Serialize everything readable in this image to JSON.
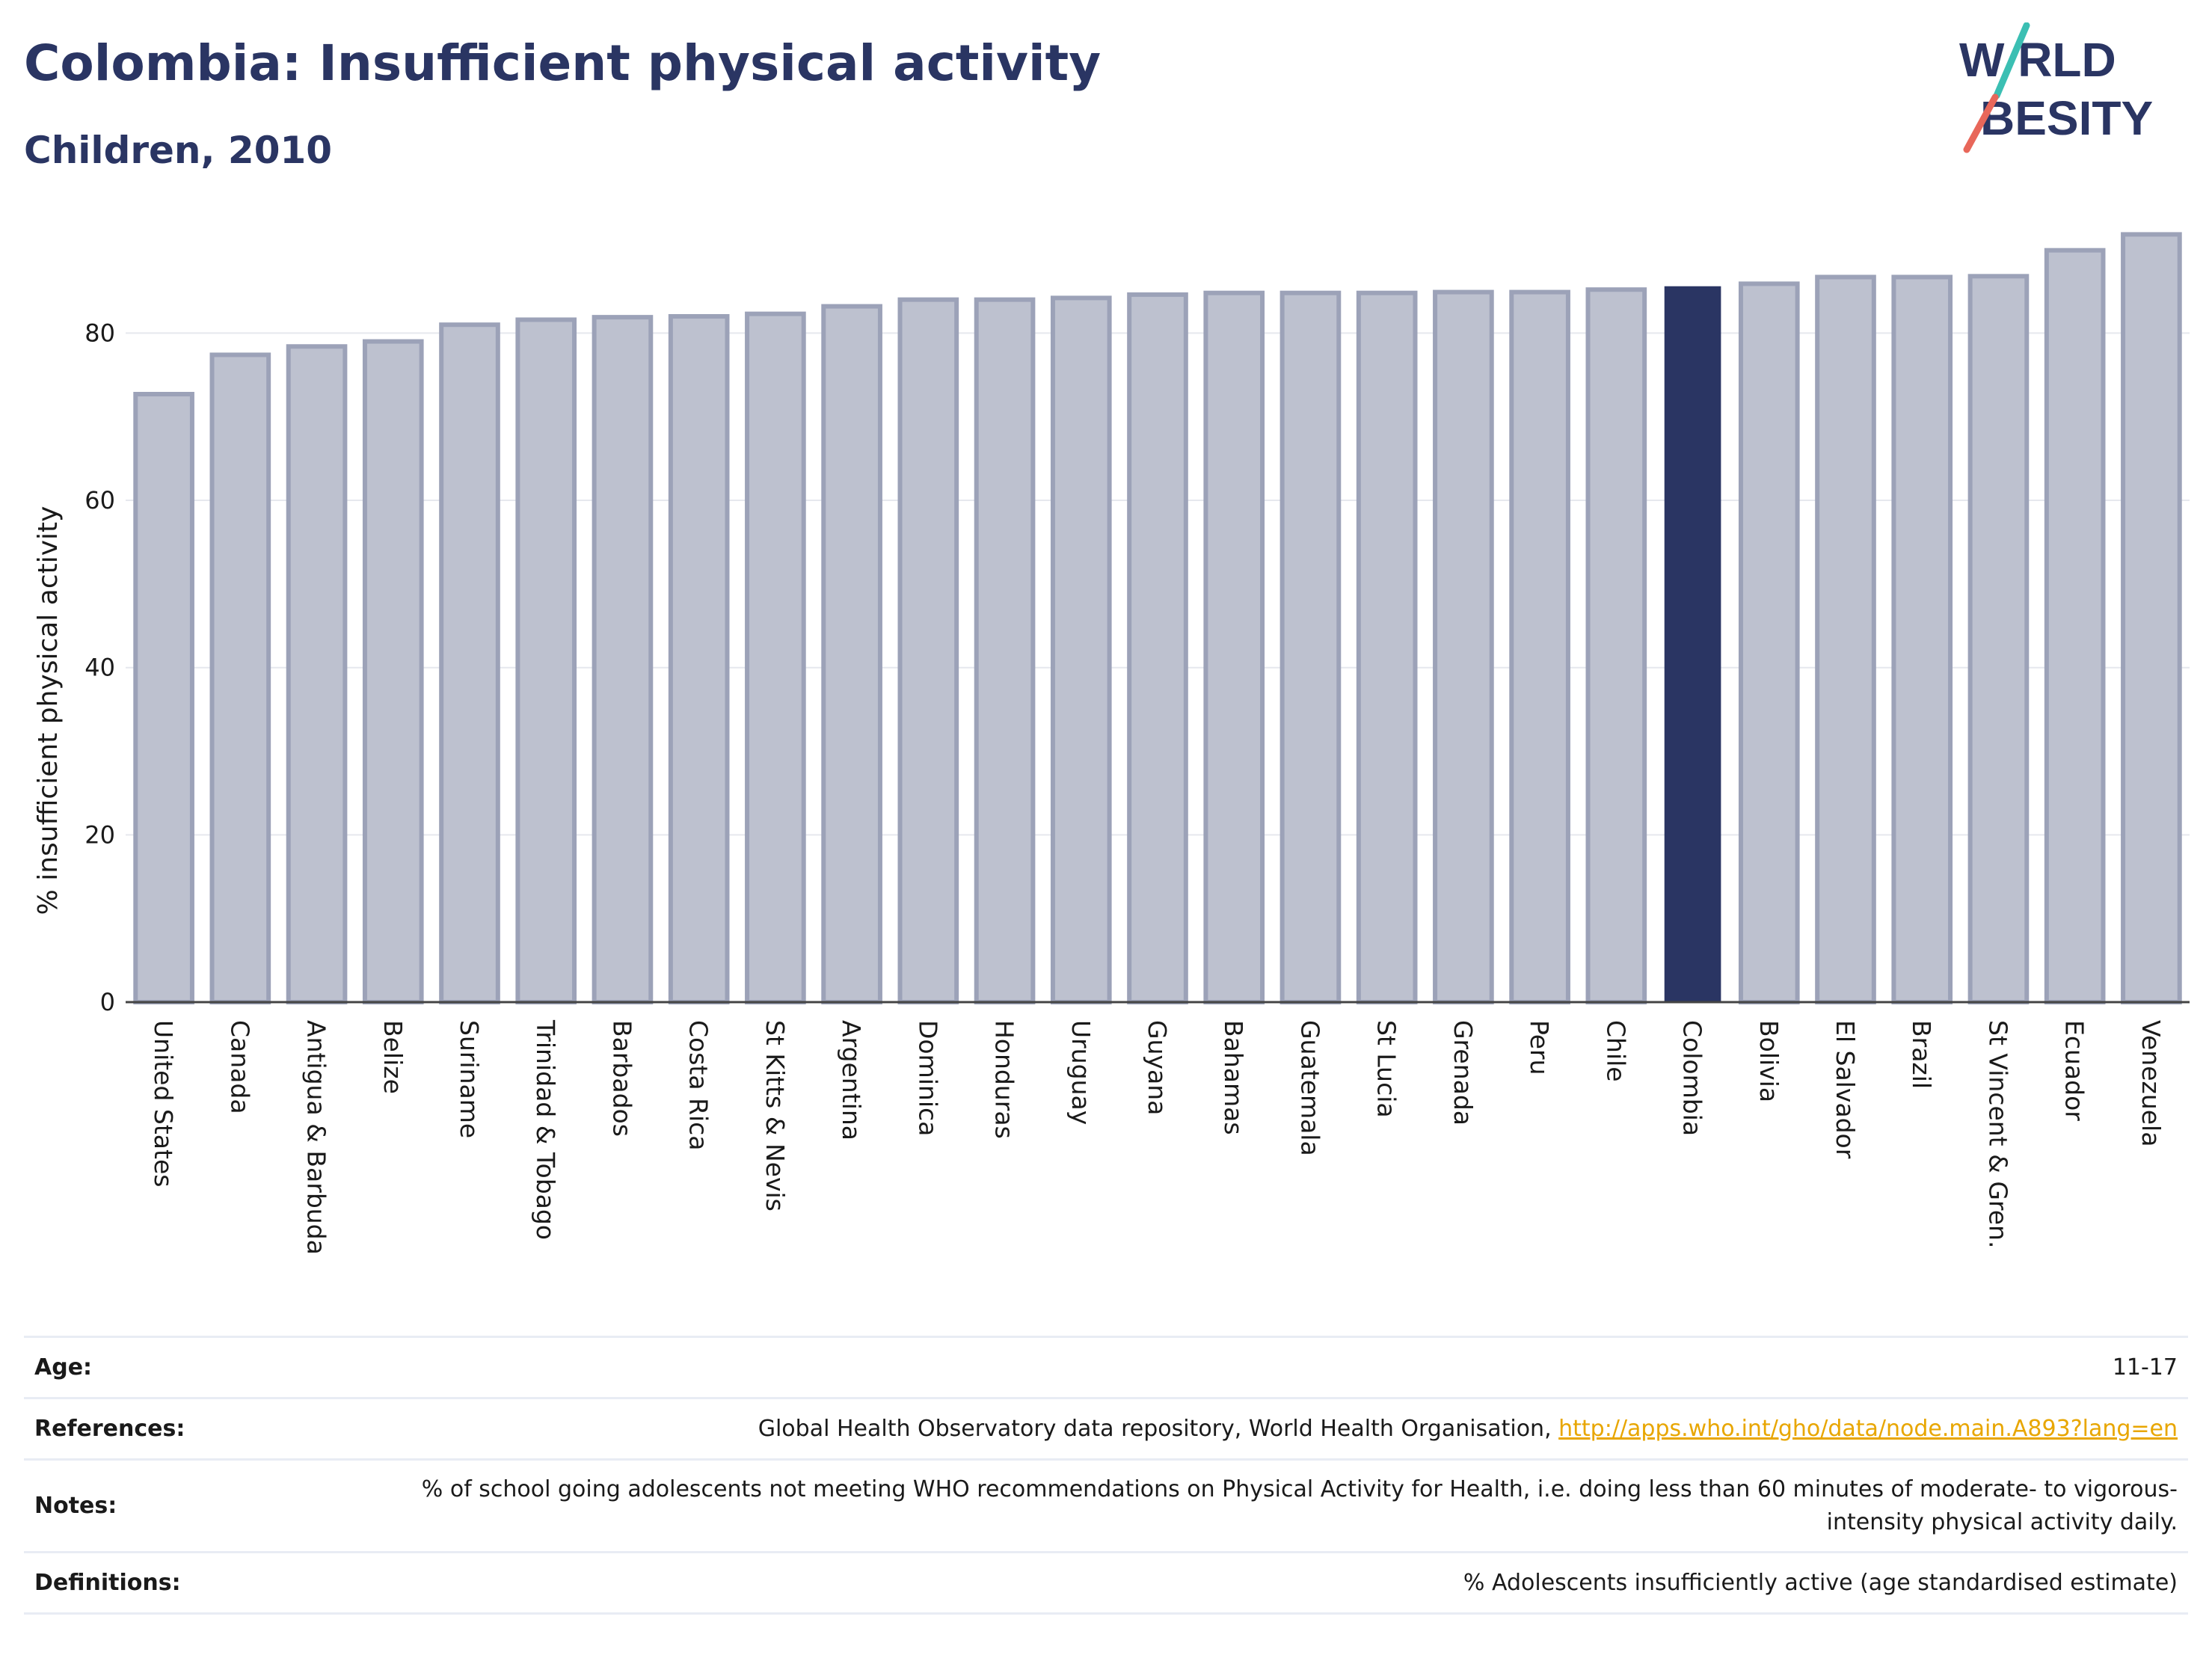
{
  "header": {
    "title": "Colombia: Insufficient physical activity",
    "subtitle": "Children, 2010",
    "logo_top": "W RLD",
    "logo_bottom": "BESITY",
    "logo_alt": "WORLD OBESITY"
  },
  "colors": {
    "bar": "#bdc1cf",
    "bar_border": "#9ca2b8",
    "highlight": "#2a3563",
    "logo_slash_teal": "#3bbfb3",
    "logo_slash_red": "#e8675a",
    "link": "#e8a600"
  },
  "chart_data": {
    "type": "bar",
    "title": "",
    "xlabel": "",
    "ylabel": "% insufficient physical activity",
    "ylim": [
      0,
      93
    ],
    "yticks": [
      0,
      20,
      40,
      60,
      80
    ],
    "grid": true,
    "highlight_category": "Colombia",
    "categories": [
      "United States",
      "Canada",
      "Antigua & Barbuda",
      "Belize",
      "Suriname",
      "Trinidad & Tobago",
      "Barbados",
      "Costa Rica",
      "St Kitts & Nevis",
      "Argentina",
      "Dominica",
      "Honduras",
      "Uruguay",
      "Guyana",
      "Bahamas",
      "Guatemala",
      "St Lucia",
      "Grenada",
      "Peru",
      "Chile",
      "Colombia",
      "Bolivia",
      "El Salvador",
      "Brazil",
      "St Vincent & Gren.",
      "Ecuador",
      "Venezuela"
    ],
    "values": [
      72.7,
      77.4,
      78.4,
      79.0,
      81.0,
      81.6,
      81.9,
      82.0,
      82.3,
      83.2,
      84.0,
      84.0,
      84.2,
      84.6,
      84.8,
      84.8,
      84.8,
      84.9,
      84.9,
      85.2,
      85.6,
      85.9,
      86.7,
      86.7,
      86.8,
      89.9,
      91.8
    ]
  },
  "metadata": {
    "age_label": "Age:",
    "age_value": "11-17",
    "references_label": "References:",
    "references_text": "Global Health Observatory data repository, World Health Organisation, ",
    "references_link": "http://apps.who.int/gho/data/node.main.A893?lang=en",
    "notes_label": "Notes:",
    "notes_text": "% of school going adolescents not meeting WHO recommendations on Physical Activity for Health, i.e. doing less than 60 minutes of moderate- to vigorous-intensity physical activity daily.",
    "definitions_label": "Definitions:",
    "definitions_text": "% Adolescents insufficiently active (age standardised estimate)"
  }
}
